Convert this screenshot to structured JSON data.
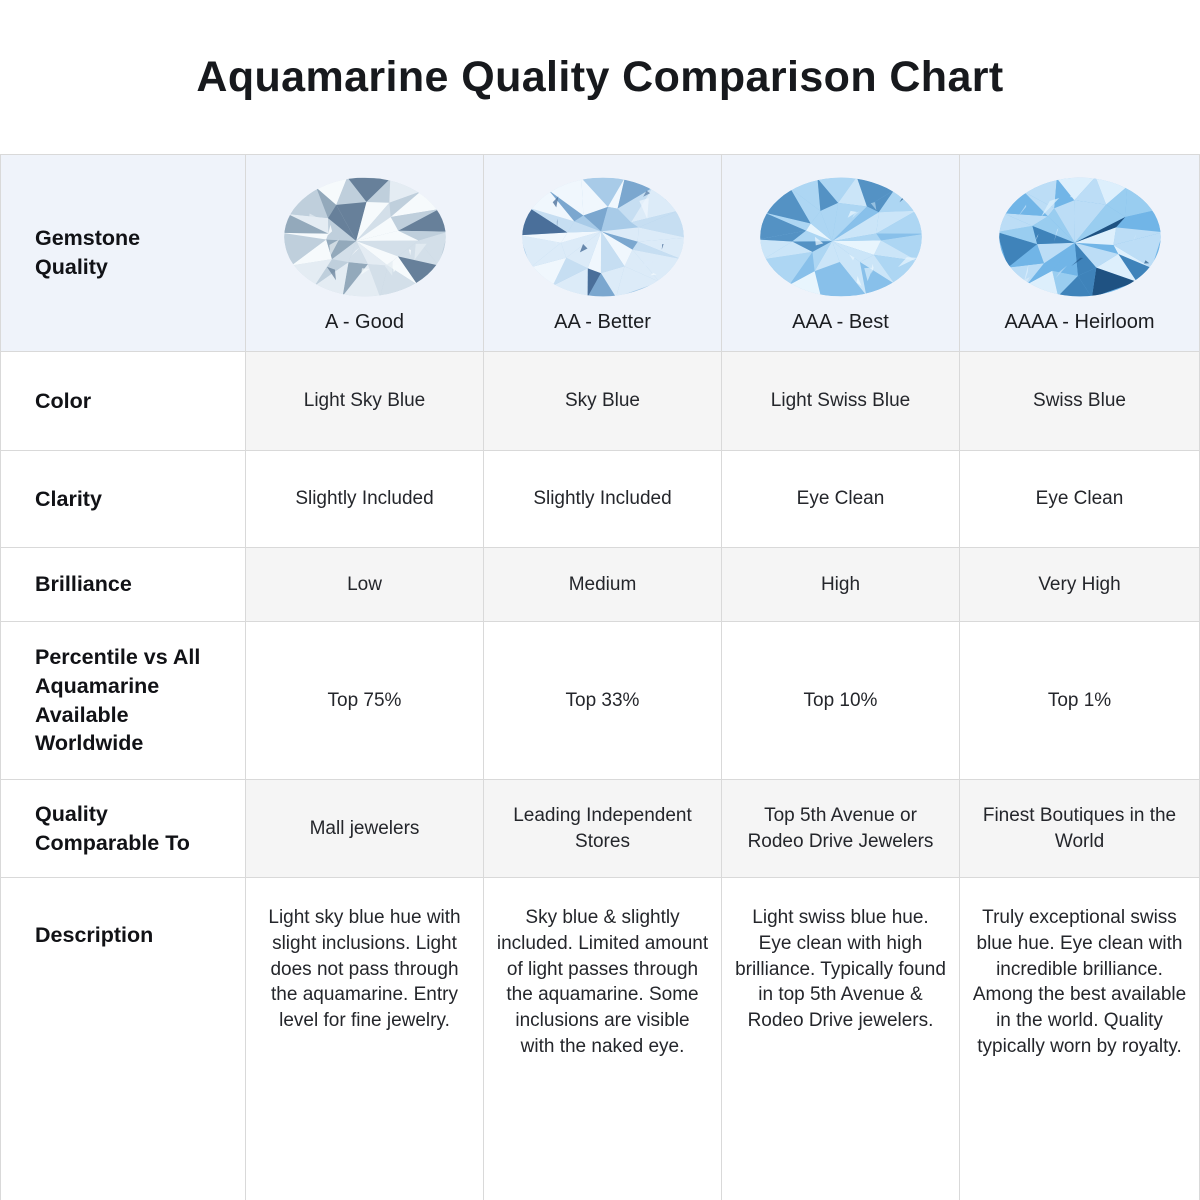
{
  "title": "Aquamarine Quality Comparison Chart",
  "colors": {
    "border": "#d9d9d9",
    "header-bg": "#eff3fa",
    "cell-bg": "#f5f5f5",
    "title-color": "#17191d",
    "text-color": "#24262b"
  },
  "chart_data": {
    "type": "table",
    "title": "Aquamarine Quality Comparison Chart",
    "attribute_labels": {
      "quality": "Gemstone\nQuality",
      "color": "Color",
      "clarity": "Clarity",
      "brilliance": "Brilliance",
      "percentile": "Percentile vs All\nAquamarine\nAvailable\nWorldwide",
      "comparable": "Quality\nComparable To",
      "description": "Description"
    },
    "grades": [
      {
        "label": "A - Good",
        "gem_icon": "aquamarine-oval-gem-light-sky-blue",
        "gem_palette": [
          "#e4ecf3",
          "#d3dfe9",
          "#bfcfdc",
          "#f6fafc",
          "#93a9bb",
          "#67809a"
        ],
        "color": "Light Sky Blue",
        "clarity": "Slightly Included",
        "brilliance": "Low",
        "percentile": "Top 75%",
        "comparable": "Mall jewelers",
        "description": "Light sky blue hue with slight inclusions. Light does not pass through the aquamarine. Entry level for fine jewelry."
      },
      {
        "label": "AA - Better",
        "gem_icon": "aquamarine-oval-gem-sky-blue",
        "gem_palette": [
          "#dcebf8",
          "#c6def2",
          "#a8cbe8",
          "#f0f7fd",
          "#7ba7cf",
          "#4a6f9a"
        ],
        "color": "Sky Blue",
        "clarity": "Slightly Included",
        "brilliance": "Medium",
        "percentile": "Top 33%",
        "comparable": "Leading Independent Stores",
        "description": "Sky blue & slightly included. Limited amount of light passes through the aquamarine. Some inclusions are visible with the naked eye."
      },
      {
        "label": "AAA - Best",
        "gem_icon": "aquamarine-oval-gem-light-swiss-blue",
        "gem_palette": [
          "#cbe5f8",
          "#add6f3",
          "#88c0ea",
          "#e8f5fd",
          "#5492c4",
          "#2d5f8e"
        ],
        "color": "Light Swiss Blue",
        "clarity": "Eye Clean",
        "brilliance": "High",
        "percentile": "Top 10%",
        "comparable": "Top 5th Avenue or Rodeo Drive Jewelers",
        "description": "Light swiss blue hue. Eye clean with high brilliance. Typically found in top 5th Avenue & Rodeo Drive jewelers."
      },
      {
        "label": "AAAA - Heirloom",
        "gem_icon": "aquamarine-oval-gem-swiss-blue",
        "gem_palette": [
          "#bcddf6",
          "#99cdf0",
          "#71b5e7",
          "#ddeffc",
          "#3f83ba",
          "#1f5282"
        ],
        "color": "Swiss Blue",
        "clarity": "Eye Clean",
        "brilliance": "Very High",
        "percentile": "Top 1%",
        "comparable": "Finest Boutiques in the World",
        "description": "Truly exceptional swiss blue hue. Eye clean with incredible brilliance. Among the best available in the world. Quality typically worn by royalty."
      }
    ]
  }
}
